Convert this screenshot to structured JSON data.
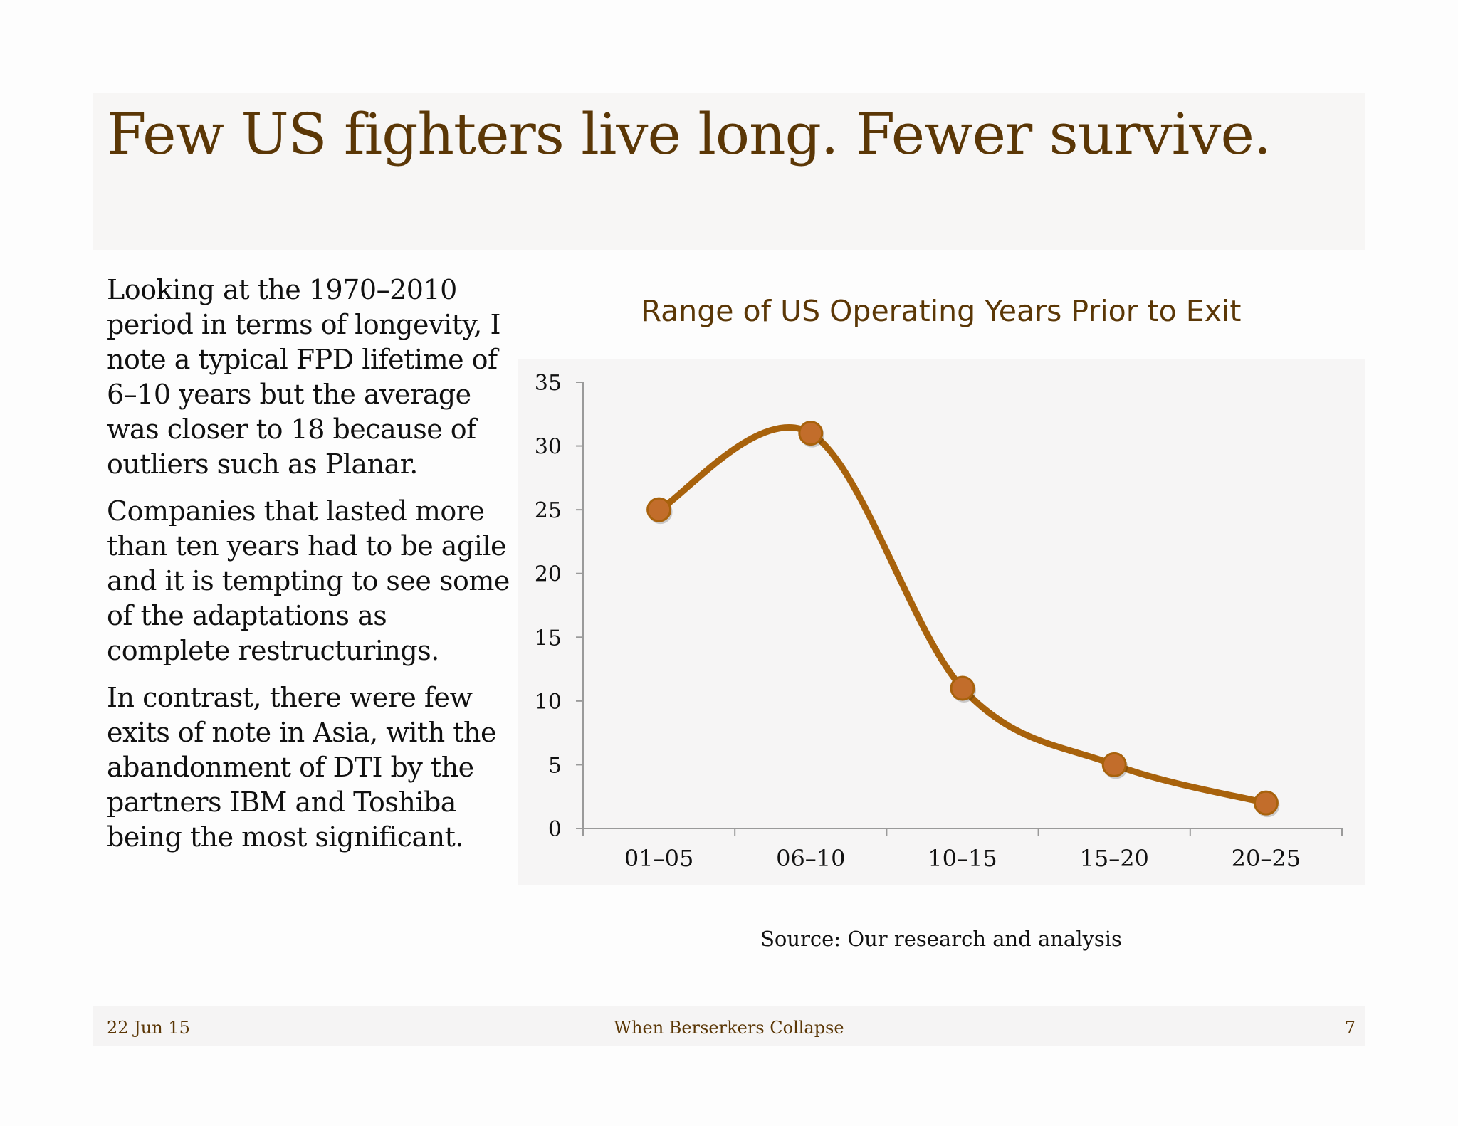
{
  "slide": {
    "title": "Few US fighters live long. Fewer survive.",
    "paragraphs": [
      "Looking at the 1970–2010 period in terms of longevity, I note a typical FPD lifetime of 6–10 years but the average was closer to 18 because of outliers such as Planar.",
      "Companies that lasted more than ten years had to be agile and it is tempting to see some of the adaptations as complete restructurings.",
      "In contrast, there were few exits of note in Asia, with the abandonment of DTI by the partners IBM and Toshiba being the most significant."
    ],
    "source": "Source: Our research and analysis"
  },
  "footer": {
    "date": "22 Jun 15",
    "center": "When Berserkers Collapse",
    "page": "7"
  },
  "colors": {
    "accent": "#5b3706",
    "line": "#a8620c",
    "marker_fill": "#c26d2b",
    "marker_stroke": "#a8620c",
    "plot_background": "#f6f5f5"
  },
  "chart_data": {
    "type": "line",
    "title": "Range of US Operating Years Prior to Exit",
    "categories": [
      "01–05",
      "06–10",
      "10–15",
      "15–20",
      "20–25"
    ],
    "series": [
      {
        "values": [
          25,
          31,
          11,
          5,
          2
        ]
      }
    ],
    "ylim": [
      0,
      35
    ],
    "yticks": [
      "0",
      "5",
      "10",
      "15",
      "20",
      "25",
      "30",
      "35"
    ],
    "xlabel": "",
    "ylabel": "",
    "grid": false,
    "legend": "none",
    "smoothed": true
  }
}
